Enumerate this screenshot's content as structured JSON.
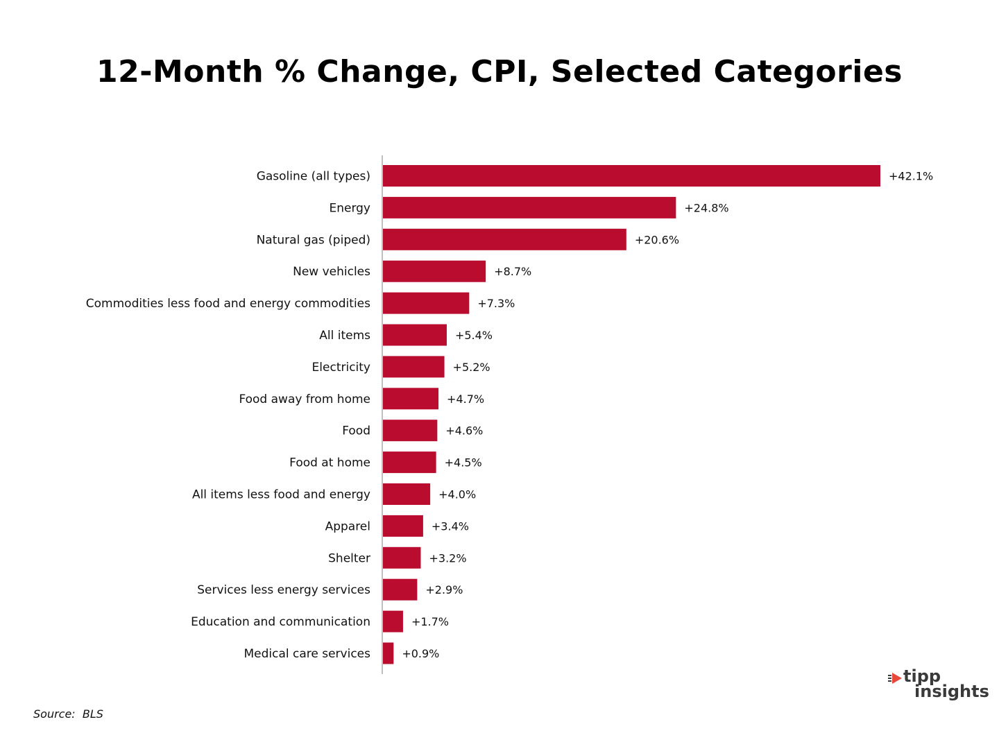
{
  "chart_data": {
    "type": "bar",
    "orientation": "horizontal",
    "title": "12-Month % Change, CPI, Selected Categories",
    "categories": [
      "Gasoline (all types)",
      "Energy",
      "Natural gas (piped)",
      "New vehicles",
      "Commodities less food and energy commodities",
      "All items",
      "Electricity",
      "Food away from home",
      "Food",
      "Food at home",
      "All items less food and energy",
      "Apparel",
      "Shelter",
      "Services less energy services",
      "Education and communication",
      "Medical care services"
    ],
    "values": [
      42.1,
      24.8,
      20.6,
      8.7,
      7.3,
      5.4,
      5.2,
      4.7,
      4.6,
      4.5,
      4.0,
      3.4,
      3.2,
      2.9,
      1.7,
      0.9
    ],
    "data_labels": [
      "+42.1%",
      "+24.8%",
      "+20.6%",
      "+8.7%",
      "+7.3%",
      "+5.4%",
      "+5.2%",
      "+4.7%",
      "+4.6%",
      "+4.5%",
      "+4.0%",
      "+3.4%",
      "+3.2%",
      "+2.9%",
      "+1.7%",
      "+0.9%"
    ],
    "xlim": [
      0,
      42.1
    ],
    "grid": false,
    "bar_color": "#ba0c2f",
    "axis_color": "#bfbfbf"
  },
  "source": "Source:  BLS",
  "logo": {
    "text_line1": "tipp",
    "text_line2": "insights",
    "accent_color": "#e8473b",
    "text_color": "#3a3a3a"
  }
}
